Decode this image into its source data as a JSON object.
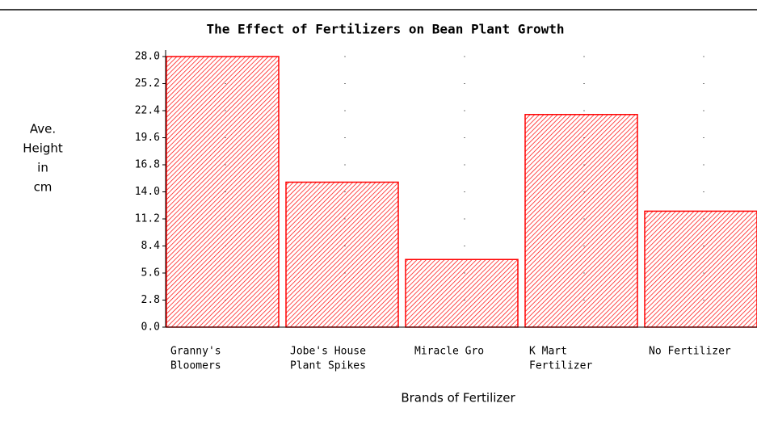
{
  "chart_data": {
    "type": "bar",
    "title": "The Effect of Fertilizers on Bean Plant Growth",
    "categories": [
      [
        "Granny's",
        "Bloomers"
      ],
      [
        "Jobe's House",
        "Plant Spikes"
      ],
      [
        "Miracle Gro"
      ],
      [
        "K Mart",
        "Fertilizer"
      ],
      [
        "No Fertilizer"
      ]
    ],
    "values": [
      28,
      15,
      7,
      22,
      12
    ],
    "color": "#ff0000",
    "y_label": [
      "Ave.",
      "Height",
      "in",
      "cm"
    ],
    "x_label": "Brands of Fertilizer",
    "ylim": [
      0,
      28
    ],
    "yticks": [
      {
        "value": 0,
        "label": "0.0"
      },
      2.8,
      5.6,
      8.4,
      11.2,
      {
        "value": 14,
        "label": "14.0"
      },
      16.8,
      19.6,
      22.4,
      25.2,
      {
        "value": 28,
        "label": "28.0"
      }
    ],
    "grid": true
  }
}
